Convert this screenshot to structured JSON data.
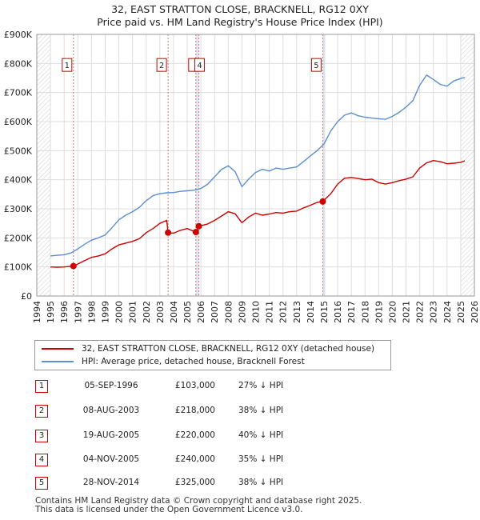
{
  "title_line1": "32, EAST STRATTON CLOSE, BRACKNELL, RG12 0XY",
  "title_line2": "Price paid vs. HM Land Registry's House Price Index (HPI)",
  "chart_data": {
    "type": "line",
    "title": "32, EAST STRATTON CLOSE, BRACKNELL, RG12 0XY — Price paid vs. HM Land Registry's House Price Index (HPI)",
    "xlim": [
      1994.0,
      2026.0
    ],
    "ylim": [
      0,
      900000
    ],
    "x_ticks": [
      1994,
      1995,
      1996,
      1997,
      1998,
      1999,
      2000,
      2001,
      2002,
      2003,
      2004,
      2005,
      2006,
      2007,
      2008,
      2009,
      2010,
      2011,
      2012,
      2013,
      2014,
      2015,
      2016,
      2017,
      2018,
      2019,
      2020,
      2021,
      2022,
      2023,
      2024,
      2025,
      2026
    ],
    "y_ticks": [
      0,
      100000,
      200000,
      300000,
      400000,
      500000,
      600000,
      700000,
      800000,
      900000
    ],
    "y_tick_labels": [
      "£0",
      "£100K",
      "£200K",
      "£300K",
      "£400K",
      "£500K",
      "£600K",
      "£700K",
      "£800K",
      "£900K"
    ],
    "colors": {
      "property": "#cc0000",
      "hpi": "#5b8fcf",
      "highlight": "#dde8f6",
      "grid": "#dddddd",
      "marker_box": "#cc0000"
    },
    "hatched_ranges": [
      [
        1994.0,
        1995.0
      ],
      [
        2025.0,
        2026.0
      ]
    ],
    "series": [
      {
        "name": "32, EAST STRATTON CLOSE, BRACKNELL, RG12 0XY (detached house)",
        "color": "#cc0000",
        "x": [
          1995.0,
          1995.5,
          1996.0,
          1996.68,
          1997.0,
          1997.5,
          1998.0,
          1998.5,
          1999.0,
          1999.5,
          2000.0,
          2000.5,
          2001.0,
          2001.5,
          2002.0,
          2002.5,
          2003.0,
          2003.5,
          2003.6,
          2004.0,
          2004.5,
          2005.0,
          2005.63,
          2005.85,
          2006.5,
          2007.0,
          2007.5,
          2008.0,
          2008.5,
          2009.0,
          2009.5,
          2010.0,
          2010.5,
          2011.0,
          2011.5,
          2012.0,
          2012.5,
          2013.0,
          2013.5,
          2014.0,
          2014.5,
          2014.91,
          2015.5,
          2016.0,
          2016.5,
          2017.0,
          2017.5,
          2018.0,
          2018.5,
          2019.0,
          2019.5,
          2020.0,
          2020.5,
          2021.0,
          2021.5,
          2022.0,
          2022.5,
          2023.0,
          2023.5,
          2024.0,
          2024.5,
          2025.0,
          2025.3
        ],
        "values": [
          100000,
          99000,
          100000,
          103000,
          110000,
          122000,
          133000,
          138000,
          145000,
          162000,
          176000,
          182000,
          188000,
          197000,
          218000,
          232000,
          250000,
          260000,
          218000,
          216000,
          226000,
          232000,
          220000,
          240000,
          248000,
          260000,
          275000,
          290000,
          283000,
          252000,
          272000,
          285000,
          278000,
          282000,
          287000,
          285000,
          290000,
          292000,
          303000,
          312000,
          322000,
          325000,
          352000,
          385000,
          405000,
          408000,
          404000,
          400000,
          402000,
          390000,
          385000,
          390000,
          397000,
          402000,
          410000,
          440000,
          458000,
          466000,
          462000,
          455000,
          457000,
          460000,
          465000
        ]
      },
      {
        "name": "HPI: Average price, detached house, Bracknell Forest",
        "color": "#5b8fcf",
        "x": [
          1995.0,
          1995.5,
          1996.0,
          1996.5,
          1997.0,
          1997.5,
          1998.0,
          1998.5,
          1999.0,
          1999.5,
          2000.0,
          2000.5,
          2001.0,
          2001.5,
          2002.0,
          2002.5,
          2003.0,
          2003.5,
          2004.0,
          2004.5,
          2005.0,
          2005.5,
          2006.0,
          2006.5,
          2007.0,
          2007.5,
          2008.0,
          2008.5,
          2009.0,
          2009.5,
          2010.0,
          2010.5,
          2011.0,
          2011.5,
          2012.0,
          2012.5,
          2013.0,
          2013.5,
          2014.0,
          2014.5,
          2015.0,
          2015.5,
          2016.0,
          2016.5,
          2017.0,
          2017.5,
          2018.0,
          2018.5,
          2019.0,
          2019.5,
          2020.0,
          2020.5,
          2021.0,
          2021.5,
          2022.0,
          2022.5,
          2023.0,
          2023.5,
          2024.0,
          2024.5,
          2025.0,
          2025.3
        ],
        "values": [
          138000,
          140000,
          142000,
          148000,
          162000,
          178000,
          192000,
          200000,
          210000,
          235000,
          262000,
          278000,
          290000,
          305000,
          328000,
          345000,
          352000,
          355000,
          356000,
          360000,
          362000,
          364000,
          370000,
          385000,
          410000,
          435000,
          448000,
          428000,
          376000,
          403000,
          425000,
          436000,
          430000,
          440000,
          436000,
          440000,
          444000,
          462000,
          482000,
          500000,
          523000,
          568000,
          600000,
          622000,
          630000,
          620000,
          615000,
          612000,
          610000,
          608000,
          618000,
          632000,
          650000,
          672000,
          725000,
          760000,
          745000,
          728000,
          722000,
          740000,
          748000,
          752000
        ]
      }
    ],
    "sales": [
      {
        "label": "1",
        "x": 1996.68,
        "value": 103000
      },
      {
        "label": "2",
        "x": 2003.6,
        "value": 218000
      },
      {
        "label": "3",
        "x": 2005.63,
        "value": 220000
      },
      {
        "label": "4",
        "x": 2005.85,
        "value": 240000
      },
      {
        "label": "5",
        "x": 2014.91,
        "value": 325000
      }
    ],
    "marker_box_value": 795000
  },
  "legend": {
    "property_label": "32, EAST STRATTON CLOSE, BRACKNELL, RG12 0XY (detached house)",
    "hpi_label": "HPI: Average price, detached house, Bracknell Forest"
  },
  "transactions": [
    {
      "num": "1",
      "date": "05-SEP-1996",
      "price": "£103,000",
      "hpi": "27% ↓ HPI"
    },
    {
      "num": "2",
      "date": "08-AUG-2003",
      "price": "£218,000",
      "hpi": "38% ↓ HPI"
    },
    {
      "num": "3",
      "date": "19-AUG-2005",
      "price": "£220,000",
      "hpi": "40% ↓ HPI"
    },
    {
      "num": "4",
      "date": "04-NOV-2005",
      "price": "£240,000",
      "hpi": "35% ↓ HPI"
    },
    {
      "num": "5",
      "date": "28-NOV-2014",
      "price": "£325,000",
      "hpi": "38% ↓ HPI"
    }
  ],
  "footer_line1": "Contains HM Land Registry data © Crown copyright and database right 2025.",
  "footer_line2": "This data is licensed under the Open Government Licence v3.0."
}
